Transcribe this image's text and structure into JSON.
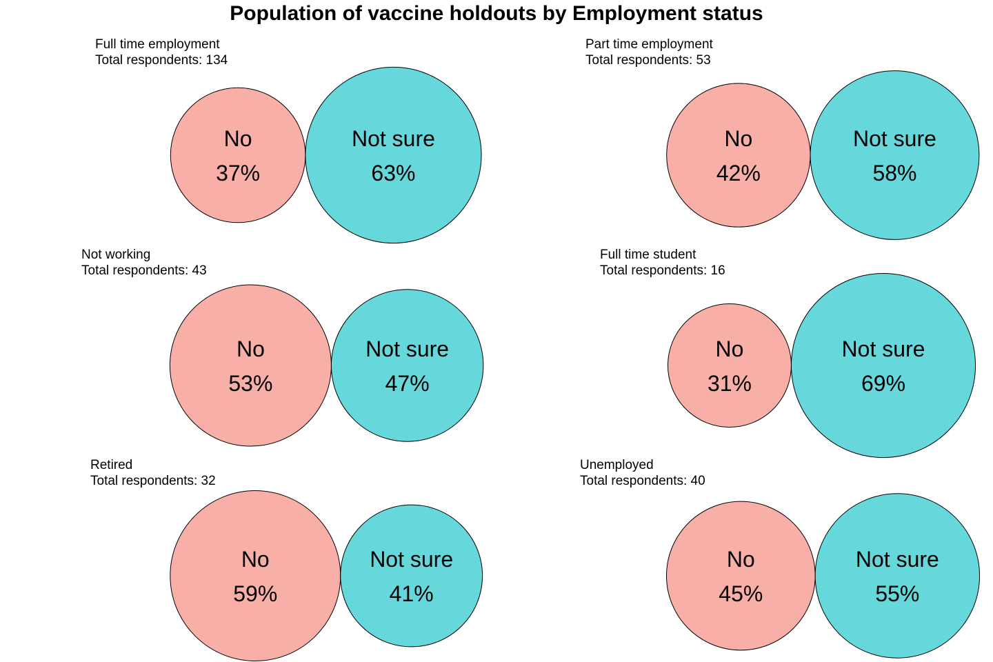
{
  "chart_data": {
    "type": "bubble",
    "title": "Population of vaccine holdouts by Employment status",
    "categories": [
      "No",
      "Not sure"
    ],
    "colors": {
      "No": "#F8AFA8",
      "Not sure": "#66D8DC"
    },
    "panels": [
      {
        "group": "Full time employment",
        "respondents_text": "Total respondents: 134",
        "total": 134,
        "values": [
          37,
          63
        ],
        "value_labels": [
          "37%",
          "63%"
        ]
      },
      {
        "group": "Part time employment",
        "respondents_text": "Total respondents: 53",
        "total": 53,
        "values": [
          42,
          58
        ],
        "value_labels": [
          "42%",
          "58%"
        ]
      },
      {
        "group": "Not working",
        "respondents_text": "Total respondents: 43",
        "total": 43,
        "values": [
          53,
          47
        ],
        "value_labels": [
          "53%",
          "47%"
        ]
      },
      {
        "group": "Full time student",
        "respondents_text": "Total respondents: 16",
        "total": 16,
        "values": [
          31,
          69
        ],
        "value_labels": [
          "31%",
          "69%"
        ]
      },
      {
        "group": "Retired",
        "respondents_text": "Total respondents: 32",
        "total": 32,
        "values": [
          59,
          41
        ],
        "value_labels": [
          "59%",
          "41%"
        ]
      },
      {
        "group": "Unemployed",
        "respondents_text": "Total respondents: 40",
        "total": 40,
        "values": [
          45,
          55
        ],
        "value_labels": [
          "45%",
          "55%"
        ]
      }
    ]
  }
}
